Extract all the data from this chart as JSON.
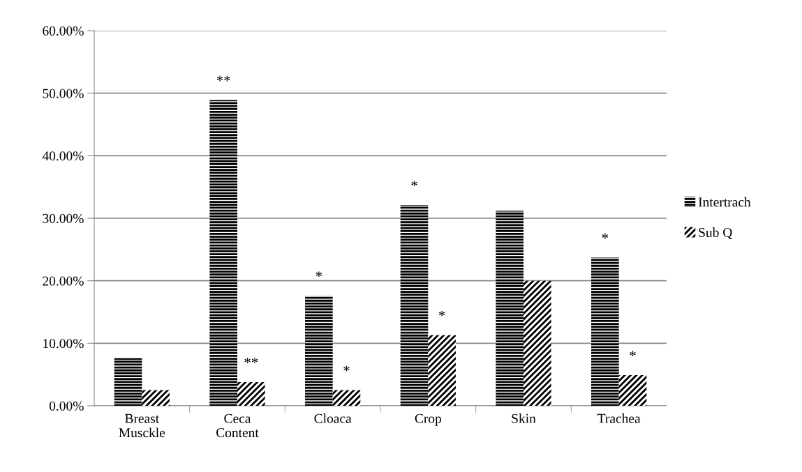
{
  "chart_data": {
    "type": "bar",
    "categories": [
      "Breast\nMusckle",
      "Ceca\nContent",
      "Cloaca",
      "Crop",
      "Skin",
      "Trachea"
    ],
    "series": [
      {
        "name": "Intertrach",
        "color": "#000000",
        "values": [
          7.6,
          48.9,
          17.6,
          32.1,
          31.2,
          23.7
        ],
        "value_labels": [
          null,
          "**",
          "*",
          "*",
          null,
          "*"
        ]
      },
      {
        "name": "Sub Q",
        "color": "#000000",
        "values": [
          2.5,
          3.8,
          2.5,
          11.3,
          20.0,
          4.9
        ],
        "value_labels": [
          null,
          "**",
          "*",
          "*",
          null,
          "*"
        ]
      }
    ],
    "ylim": [
      0,
      60
    ],
    "yticks": [
      {
        "value": 0,
        "label": "0.00%"
      },
      {
        "value": 10,
        "label": "10.00%"
      },
      {
        "value": 20,
        "label": "20.00%"
      },
      {
        "value": 30,
        "label": "30.00%"
      },
      {
        "value": 40,
        "label": "40.00%"
      },
      {
        "value": 50,
        "label": "50.00%"
      },
      {
        "value": 60,
        "label": "60.00%"
      }
    ],
    "grid": "y",
    "legend": "right"
  }
}
